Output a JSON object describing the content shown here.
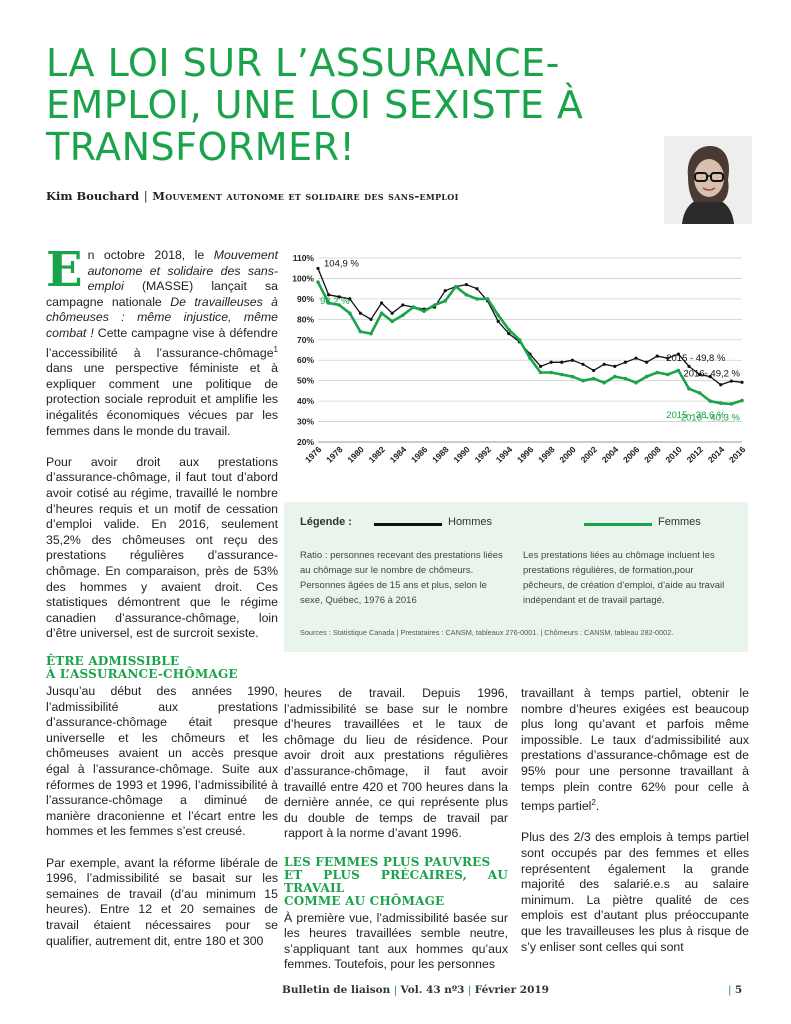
{
  "title": "LA LOI SUR L’ASSURANCE-EMPLOI, UNE LOI SEXISTE À TRANSFORMER!",
  "author": {
    "name": "Kim Bouchard",
    "separator": "|",
    "organization": "Mouvement autonome et solidaire des sans-emploi"
  },
  "photo_icon": "portrait-photo",
  "intro": {
    "dropcap": "E",
    "p1_a": "n octobre 2018, le ",
    "p1_org": "Mouvement autonome et solidaire des sans-emploi",
    "p1_b": " (MASSE) lançait sa campagne nationale ",
    "p1_campaign": "De travailleuses à chômeuses : même injustice, même combat !",
    "p1_c": " Cette campagne vise à défendre l’accessibilité à l’assurance-chômage",
    "p1_sup": "1",
    "p1_d": " dans une perspective féministe et à expliquer comment une politique de protection sociale reproduit et amplifie les inégalités économiques vécues par les femmes dans le monde du travail.",
    "p2": "Pour avoir droit aux prestations d’assurance-chômage, il faut tout d’abord avoir cotisé au régime, travaillé le nombre d’heures requis et un motif de cessation d’emploi valide. En 2016, seulement 35,2% des chômeuses ont reçu des prestations régulières d’assurance-chômage. En comparaison, près de 53% des hommes y avaient droit. Ces statistiques démontrent que le régime canadien d’assurance-chômage, loin d’être universel, est de surcroit sexiste."
  },
  "section1": {
    "heading_line1": "Être admissible",
    "heading_line2": "à l’assurance-chômage",
    "p1": "Jusqu’au début des années 1990, l’admissibilité aux prestations d’assurance-chômage était presque universelle et les chômeurs et les chômeuses avaient un accès presque égal à l’assurance-chômage. Suite aux réformes de 1993 et 1996, l’admissibilité à l’assurance-chômage a diminué de manière draconienne et l’écart entre les hommes et les femmes s’est creusé.",
    "p2": "Par exemple, avant la réforme libérale de 1996, l’admissibilité se basait sur les semaines de travail (d’au minimum 15 heures). Entre 12 et 20 semaines de travail étaient nécessaires pour se qualifier, autrement dit, entre 180 et 300",
    "p3": "heures de travail. Depuis 1996, l’admissibilité se base sur le nombre d’heures travaillées et le taux de chômage du lieu de résidence. Pour avoir droit aux prestations régulières d’assurance-chômage, il faut avoir travaillé entre 420 et 700 heures dans la dernière année, ce qui représente plus du double de temps de travail par rapport à la norme d’avant 1996."
  },
  "section2": {
    "heading_line1": "Les femmes plus pauvres",
    "heading_line2": "et plus précaires, au travail",
    "heading_line3": "comme au chômage",
    "p1": "À première vue, l’admissibilité basée sur les heures travaillées semble neutre, s’appliquant tant aux hommes qu’aux femmes. Toutefois, pour les personnes",
    "p2_a": "travaillant à temps partiel, obtenir le nombre d’heures exigées est beaucoup plus long qu’avant et parfois même impossible. Le taux d’admissibilité aux prestations d’assurance-chômage est de 95% pour une personne travaillant à temps plein contre 62% pour celle à temps partiel",
    "p2_sup": "2",
    "p2_b": ".",
    "p3": "Plus des 2/3 des emplois à temps partiel sont occupés par des femmes et elles représentent également la grande majorité des salarié.e.s au salaire minimum. La piètre qualité de ces emplois est d’autant plus préoccupante que les travailleuses les plus à risque de s’y enliser sont celles qui sont"
  },
  "legend": {
    "label": "Légende :",
    "men": "Hommes",
    "women": "Femmes",
    "note_ratio": "Ratio : personnes recevant des prestations liées au chômage sur le nombre de chômeurs. Personnes âgées de 15 ans et plus, selon le sexe, Québec, 1976 à 2016",
    "note_benefits": "Les prestations liées au chômage incluent les prestations régulières, de formation,pour pêcheurs, de création d’emploi, d’aide au travail indépendant et de travail partagé.",
    "sources": "Sources : Statistique Canada   |  Prestataires : CANSM, tableaux 276-0001.   |  Chômeurs : CANSM, tableau 282-0002."
  },
  "chart_data": {
    "type": "line",
    "x": [
      1976,
      1977,
      1978,
      1979,
      1980,
      1981,
      1982,
      1983,
      1984,
      1985,
      1986,
      1987,
      1988,
      1989,
      1990,
      1991,
      1992,
      1993,
      1994,
      1995,
      1996,
      1997,
      1998,
      1999,
      2000,
      2001,
      2002,
      2003,
      2004,
      2005,
      2006,
      2007,
      2008,
      2009,
      2010,
      2011,
      2012,
      2013,
      2014,
      2015,
      2016
    ],
    "x_tick_labels": [
      "1976",
      "1978",
      "1980",
      "1982",
      "1984",
      "1986",
      "1988",
      "1990",
      "1992",
      "1994",
      "1996",
      "1998",
      "2000",
      "2002",
      "2004",
      "2006",
      "2008",
      "2010",
      "2012",
      "2014",
      "2016"
    ],
    "y_tick_labels": [
      "20%",
      "30%",
      "40%",
      "50%",
      "60%",
      "70%",
      "80%",
      "90%",
      "100%",
      "110%"
    ],
    "ylim": [
      20,
      110
    ],
    "grid": true,
    "series": [
      {
        "name": "Hommes",
        "color": "#111111",
        "values": [
          104.9,
          92,
          91,
          90,
          83,
          80,
          88,
          83,
          87,
          86,
          85,
          86,
          94,
          96,
          97,
          95,
          89,
          79,
          73,
          69,
          63,
          57,
          59,
          59,
          60,
          58,
          55,
          58,
          57,
          59,
          61,
          59,
          62,
          61,
          63,
          57,
          53,
          52,
          48,
          49.8,
          49.2
        ]
      },
      {
        "name": "Femmes",
        "color": "#1aa34a",
        "values": [
          98.2,
          88,
          87,
          83,
          74,
          73,
          83,
          79,
          82,
          86,
          84,
          87,
          89,
          96,
          92,
          90,
          90,
          82,
          75,
          70,
          61,
          54,
          54,
          53,
          52,
          50,
          51,
          49,
          52,
          51,
          49,
          52,
          54,
          53,
          55,
          46,
          44,
          40,
          39,
          38.6,
          40.3
        ]
      }
    ],
    "annotations": [
      {
        "text": "104,9 %",
        "series": "Hommes",
        "x": 1976
      },
      {
        "text": "98,2 %",
        "series": "Femmes",
        "x": 1976
      },
      {
        "text": "2015 - 49,8 %",
        "series": "Hommes",
        "x": 2015
      },
      {
        "text": "2016- 49,2 %",
        "series": "Hommes",
        "x": 2016
      },
      {
        "text": "2015 - 38,6 %",
        "series": "Femmes",
        "x": 2015
      },
      {
        "text": "2016 - 40,3 %",
        "series": "Femmes",
        "x": 2016
      }
    ]
  },
  "footer": {
    "bulletin": "Bulletin de liaison",
    "bar": "|",
    "volume": "Vol. 43 nº3",
    "date": "Février 2019",
    "page": "5"
  }
}
